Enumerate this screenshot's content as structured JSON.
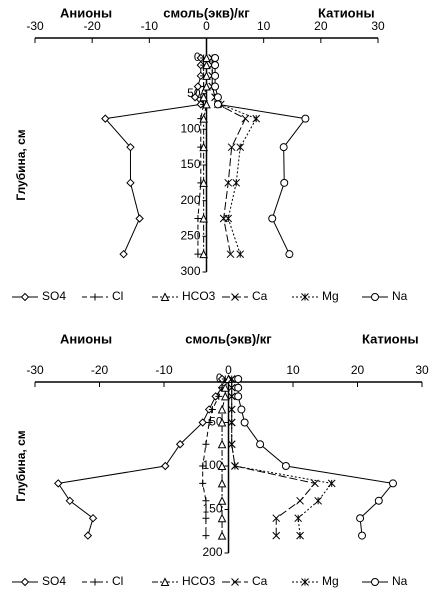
{
  "chart_data": [
    {
      "type": "line",
      "title": "смоль(экв)/кг",
      "annotations": [
        "Анионы",
        "Катионы"
      ],
      "y_label": "Глубина, см",
      "y": [
        0,
        10,
        25,
        40,
        55,
        65,
        85,
        125,
        175,
        225,
        275
      ],
      "xlim": [
        -30,
        30
      ],
      "xticks": [
        -30,
        -20,
        -10,
        0,
        10,
        20,
        30
      ],
      "ylim": [
        0,
        300
      ],
      "yticks": [
        0,
        50,
        100,
        150,
        200,
        250,
        300
      ],
      "y_reversed": true,
      "series": [
        {
          "name": "SO4",
          "color": "#000000",
          "values": [
            -1,
            -1,
            -1,
            -1.5,
            -2,
            -1,
            -17.7,
            -13.3,
            -13.3,
            -11.7,
            -14.5
          ]
        },
        {
          "name": "Cl",
          "color": "#000000",
          "values": [
            -0.5,
            -0.5,
            -0.5,
            -0.5,
            -1,
            -0.5,
            -1,
            -1,
            -1,
            -1.5,
            -1.5
          ]
        },
        {
          "name": "HCO3",
          "color": "#000000",
          "values": [
            0,
            0,
            0,
            0,
            -0.5,
            0,
            -0.5,
            -0.5,
            -0.5,
            -0.5,
            -0.5
          ]
        },
        {
          "name": "Ca",
          "color": "#000000",
          "values": [
            1,
            1,
            1,
            1,
            1.5,
            2,
            6.8,
            4.4,
            3.8,
            3,
            4.2
          ]
        },
        {
          "name": "Mg",
          "color": "#000000",
          "values": [
            1,
            1,
            1,
            1,
            1.5,
            2.5,
            8.7,
            5.9,
            5.2,
            3.8,
            5.9
          ]
        },
        {
          "name": "Na",
          "color": "#000000",
          "values": [
            1.5,
            1.5,
            1.5,
            1.5,
            2,
            2,
            17.3,
            13.5,
            13.6,
            11.5,
            14.5
          ]
        }
      ]
    },
    {
      "type": "line",
      "title": "смоль(экв)/кг",
      "annotations": [
        "Анионы",
        "Катионы"
      ],
      "y_label": "Глубина, см",
      "y": [
        0,
        10,
        20,
        35,
        50,
        75,
        100,
        120,
        140,
        160,
        180
      ],
      "xlim": [
        -30,
        30
      ],
      "xticks": [
        -30,
        -20,
        -10,
        0,
        10,
        20,
        30
      ],
      "ylim": [
        0,
        200
      ],
      "yticks": [
        0,
        50,
        100,
        150,
        200
      ],
      "y_reversed": true,
      "series": [
        {
          "name": "SO4",
          "color": "#000000",
          "values": [
            -1,
            -1,
            -2,
            -3,
            -4,
            -7.5,
            -9.8,
            -26.4,
            -24.6,
            -21,
            -21.8
          ]
        },
        {
          "name": "Cl",
          "color": "#000000",
          "values": [
            -0.5,
            -1,
            -1.5,
            -2.5,
            -3,
            -3.5,
            -4,
            -4,
            -3.5,
            -3.5,
            -3.5
          ]
        },
        {
          "name": "HCO3",
          "color": "#000000",
          "values": [
            0,
            -0.5,
            -0.5,
            -1,
            -1,
            -1,
            -1,
            -1,
            -1,
            -1,
            -1
          ]
        },
        {
          "name": "Ca",
          "color": "#000000",
          "values": [
            0.5,
            0.5,
            0.5,
            0.5,
            0.5,
            0.5,
            1,
            13.4,
            11.1,
            7.4,
            7.4
          ]
        },
        {
          "name": "Mg",
          "color": "#000000",
          "values": [
            0.5,
            0.5,
            0.5,
            0.5,
            0.5,
            0.5,
            1,
            16,
            13.9,
            10.8,
            11.1
          ]
        },
        {
          "name": "Na",
          "color": "#000000",
          "values": [
            1.5,
            1.5,
            1.5,
            2,
            2.5,
            4.9,
            8.9,
            25.5,
            23.3,
            20.4,
            20.7
          ]
        }
      ]
    }
  ]
}
